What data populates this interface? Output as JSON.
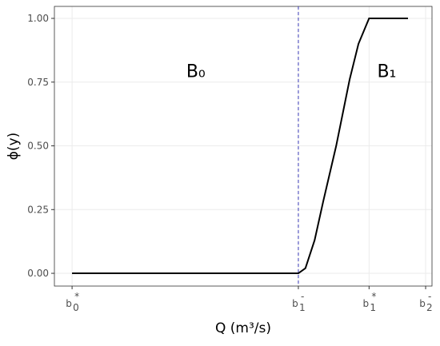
{
  "chart_data": {
    "type": "line",
    "x_label": "Q (m³/s)",
    "y_label": "ϕ(y)",
    "x": [
      0,
      0.64,
      0.66,
      0.686,
      0.71,
      0.747,
      0.785,
      0.81,
      0.84,
      0.95
    ],
    "series": [
      {
        "color": "#000000",
        "values": [
          0,
          0,
          0.02,
          0.13,
          0.28,
          0.5,
          0.76,
          0.9,
          1.0,
          1.0
        ]
      }
    ],
    "xlim": [
      -0.05,
      1.018
    ],
    "ylim": [
      -0.05,
      1.047
    ],
    "xticks": [
      {
        "value": 0,
        "label": "b",
        "sub": "0",
        "sup": "*"
      },
      {
        "value": 0.64,
        "label": "b",
        "sub": "1",
        "sup": "-"
      },
      {
        "value": 0.84,
        "label": "b",
        "sub": "1",
        "sup": "*"
      },
      {
        "value": 1,
        "label": "b",
        "sub": "2",
        "sup": "-"
      }
    ],
    "yticks": [
      {
        "value": 0,
        "label": "0.00"
      },
      {
        "value": 0.25,
        "label": "0.25"
      },
      {
        "value": 0.5,
        "label": "0.50"
      },
      {
        "value": 0.75,
        "label": "0.75"
      },
      {
        "value": 1,
        "label": "1.00"
      }
    ],
    "grid": true,
    "vline": {
      "x": 0.64,
      "color": "#3a3ab8"
    },
    "annotations": [
      {
        "text": "B₀",
        "x": 0.35,
        "y": 0.795
      },
      {
        "text": "B₁",
        "x": 0.89,
        "y": 0.795
      }
    ]
  }
}
